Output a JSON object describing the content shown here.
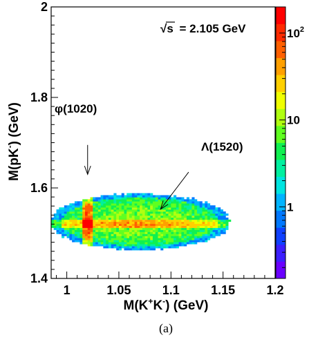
{
  "chart_data": {
    "type": "heatmap",
    "title": "",
    "energy_label": {
      "symbol": "√s",
      "value_text": "= 2.105 GeV"
    },
    "xlabel": {
      "base": "M(K",
      "sup1": "+",
      "mid": "K",
      "sup2": "-",
      "end": ") (GeV)"
    },
    "ylabel": {
      "base": "M(pK",
      "sup": "-",
      "end": ") (GeV)"
    },
    "xlim": [
      0.985,
      1.2
    ],
    "ylim": [
      1.4,
      2.0
    ],
    "x_ticks": [
      {
        "value": 1.0,
        "label": "1"
      },
      {
        "value": 1.05,
        "label": "1.05"
      },
      {
        "value": 1.1,
        "label": "1.1"
      },
      {
        "value": 1.15,
        "label": "1.15"
      },
      {
        "value": 1.2,
        "label": "1.2"
      }
    ],
    "y_ticks": [
      {
        "value": 1.4,
        "label": "1.4"
      },
      {
        "value": 1.6,
        "label": "1.6"
      },
      {
        "value": 1.8,
        "label": "1.8"
      },
      {
        "value": 2.0,
        "label": "2"
      }
    ],
    "z_scale": "log",
    "z_range": [
      0.15,
      200
    ],
    "z_ticks": [
      {
        "value": 1,
        "base": "1",
        "exp": ""
      },
      {
        "value": 10,
        "base": "10",
        "exp": ""
      },
      {
        "value": 100,
        "base": "10",
        "exp": "2"
      }
    ],
    "palette": [
      "#6a00ff",
      "#3c1fff",
      "#1040ff",
      "#0078ff",
      "#00b4ff",
      "#00e5e0",
      "#00f0a0",
      "#10f050",
      "#60ff20",
      "#b0ff10",
      "#f0ff00",
      "#ffd000",
      "#ffa000",
      "#ff6000",
      "#ff2a00",
      "#ff0000"
    ],
    "region": {
      "description_center": [
        1.07,
        1.525
      ],
      "semi_axes": [
        0.087,
        0.062
      ],
      "background_level": 6,
      "phi_mass": 1.02,
      "lambda_mass": 1.52
    },
    "annotations": [
      {
        "text": "φ(1020)",
        "arrow_from": [
          1.02,
          1.695
        ],
        "arrow_to": [
          1.02,
          1.63
        ]
      },
      {
        "text": "Λ(1520)",
        "arrow_from": [
          1.117,
          1.635
        ],
        "arrow_to": [
          1.09,
          1.553
        ]
      }
    ],
    "caption": "(a)"
  }
}
